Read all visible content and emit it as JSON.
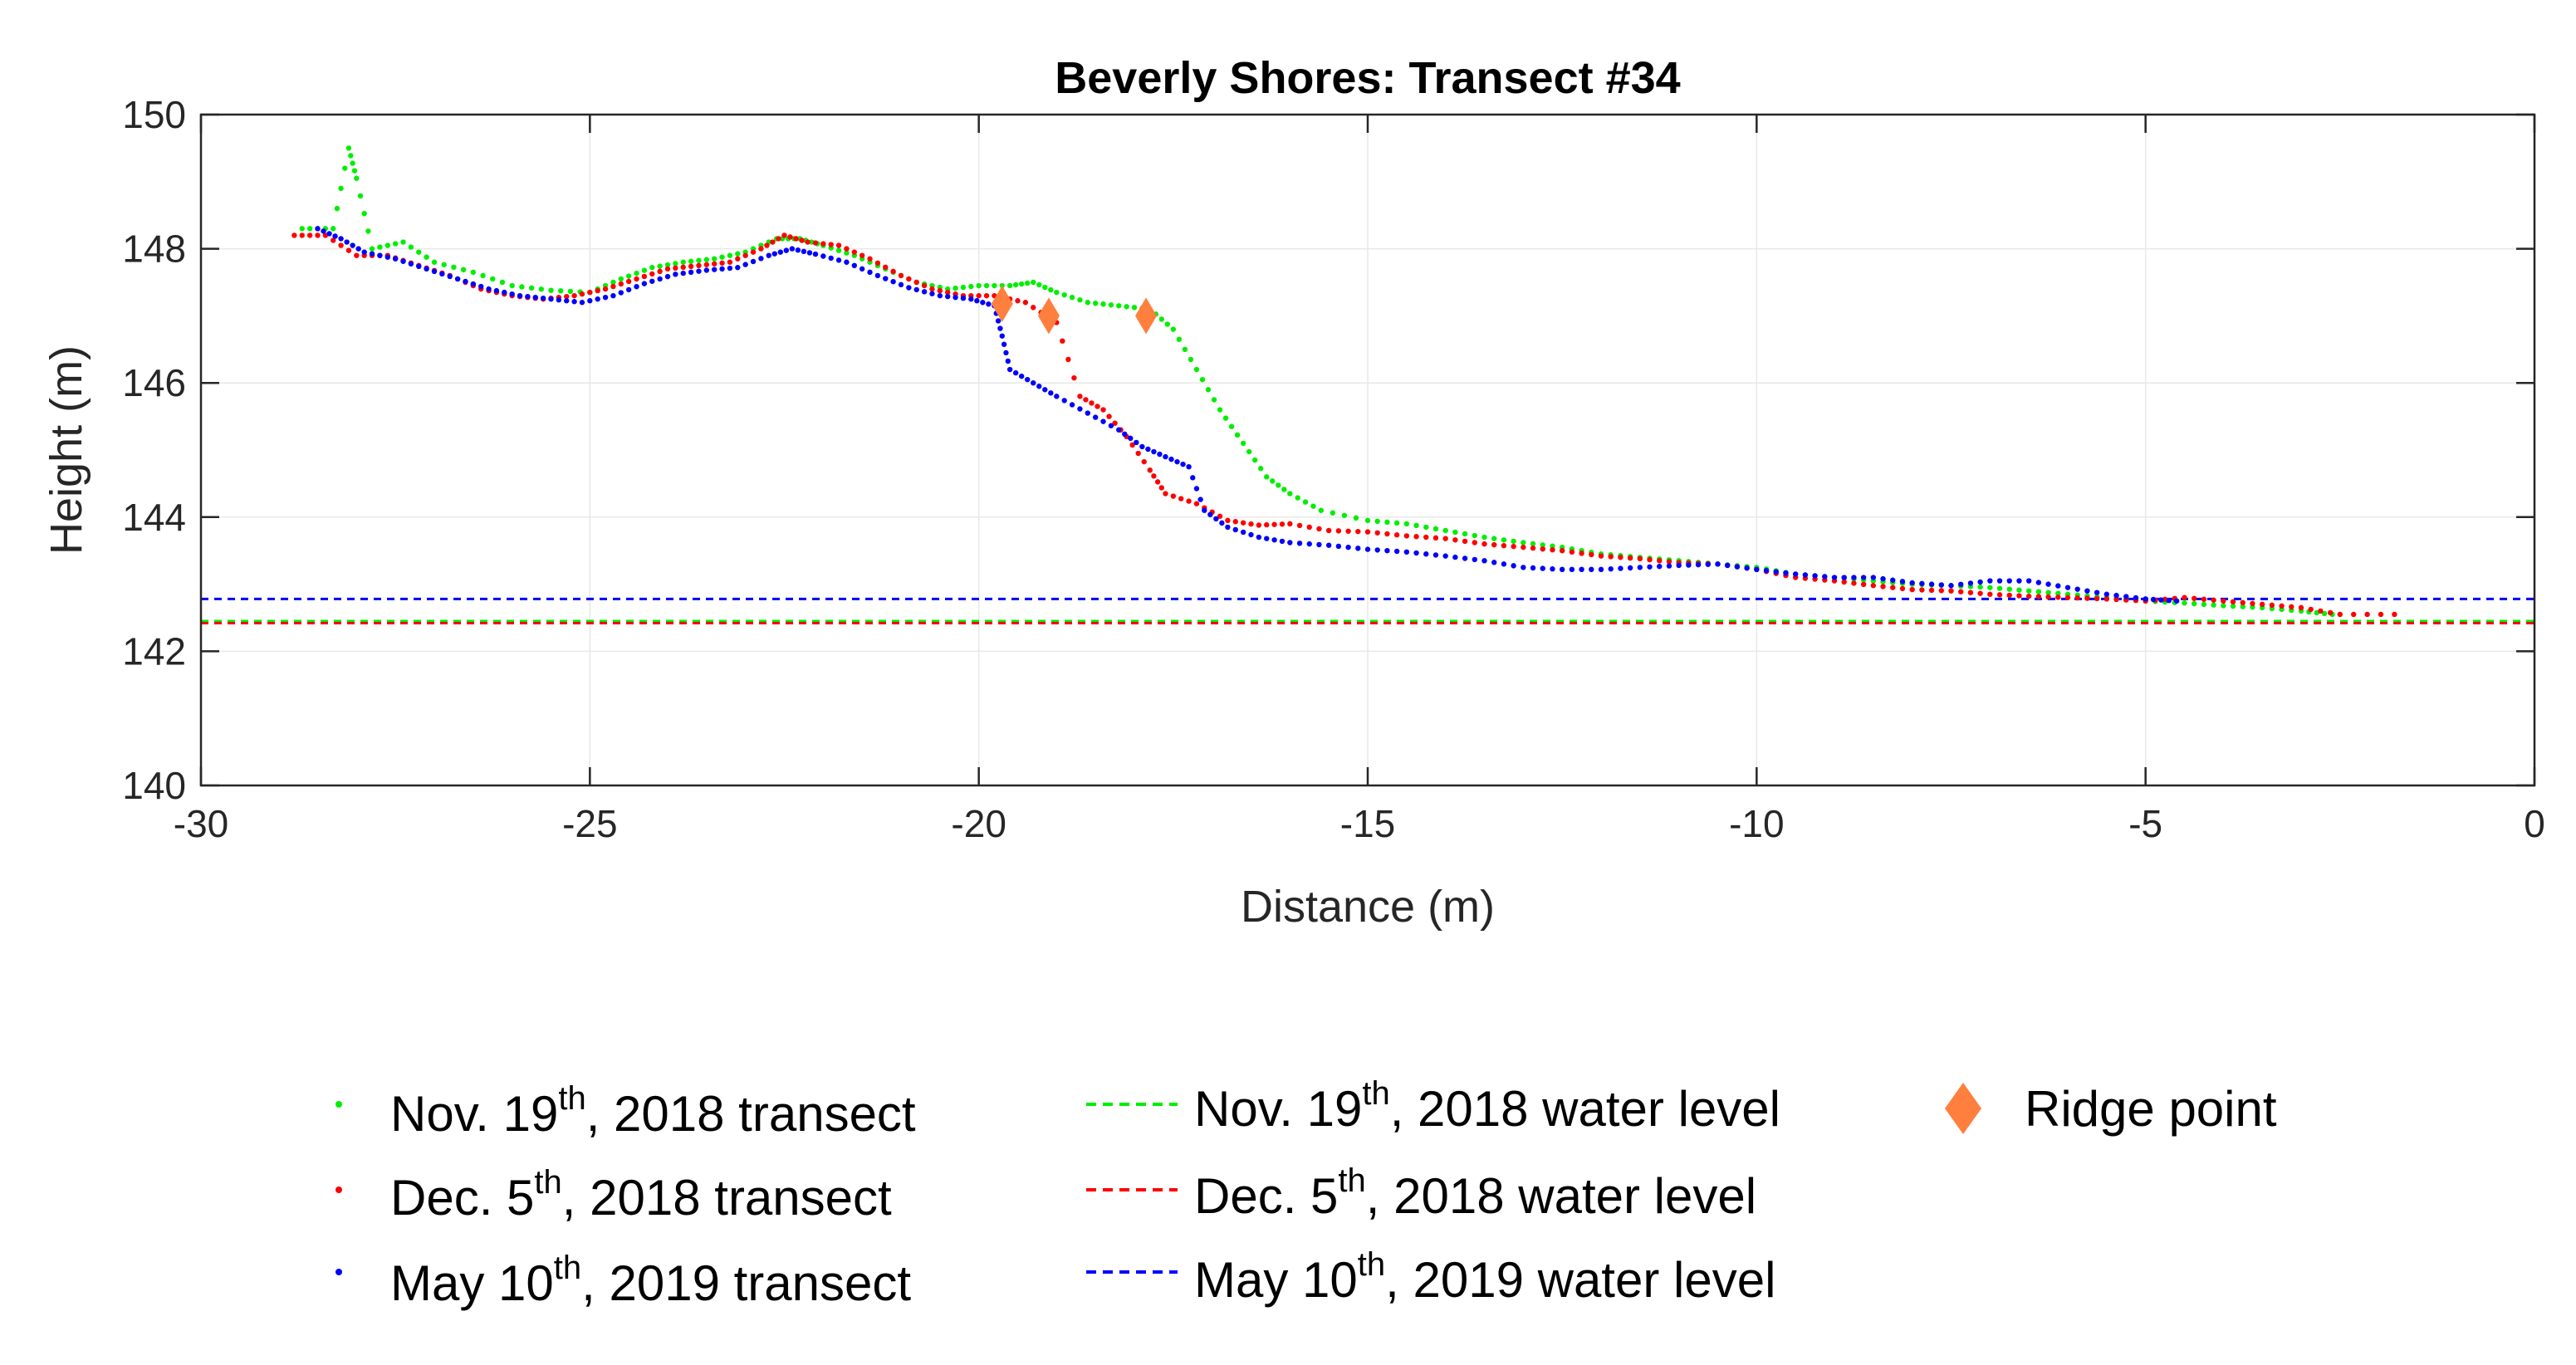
{
  "chart_data": {
    "type": "scatter",
    "title": "Beverly Shores: Transect #34",
    "xlabel": "Distance (m)",
    "ylabel": "Height (m)",
    "xlim": [
      -30,
      0
    ],
    "ylim": [
      140,
      150
    ],
    "xticks": [
      -30,
      -25,
      -20,
      -15,
      -10,
      -5,
      0
    ],
    "yticks": [
      140,
      142,
      144,
      146,
      148,
      150
    ],
    "grid": true,
    "legend_position": "bottom-outside",
    "series": [
      {
        "name": "Nov. 19th, 2018 transect",
        "date_label": "Nov. 19",
        "date_sup": "th",
        "date_suffix": ", 2018 transect",
        "kind": "scatter",
        "color": "#00ee00",
        "points": [
          [
            -28.7,
            148.3
          ],
          [
            -28.3,
            148.3
          ],
          [
            -28.1,
            149.5
          ],
          [
            -28.0,
            149.05
          ],
          [
            -27.8,
            148.0
          ],
          [
            -27.4,
            148.1
          ],
          [
            -27.0,
            147.8
          ],
          [
            -26.5,
            147.65
          ],
          [
            -26.0,
            147.45
          ],
          [
            -25.5,
            147.38
          ],
          [
            -25.0,
            147.35
          ],
          [
            -24.6,
            147.55
          ],
          [
            -24.2,
            147.72
          ],
          [
            -23.8,
            147.8
          ],
          [
            -23.4,
            147.85
          ],
          [
            -23.0,
            147.95
          ],
          [
            -22.6,
            148.15
          ],
          [
            -22.3,
            148.15
          ],
          [
            -22.0,
            148.05
          ],
          [
            -21.6,
            147.9
          ],
          [
            -21.2,
            147.7
          ],
          [
            -20.8,
            147.5
          ],
          [
            -20.4,
            147.4
          ],
          [
            -20.0,
            147.45
          ],
          [
            -19.6,
            147.45
          ],
          [
            -19.3,
            147.5
          ],
          [
            -19.0,
            147.35
          ],
          [
            -18.6,
            147.2
          ],
          [
            -18.2,
            147.15
          ],
          [
            -17.8,
            147.1
          ],
          [
            -17.5,
            146.8
          ],
          [
            -17.2,
            146.2
          ],
          [
            -16.9,
            145.6
          ],
          [
            -16.6,
            145.1
          ],
          [
            -16.3,
            144.6
          ],
          [
            -16.0,
            144.35
          ],
          [
            -15.6,
            144.1
          ],
          [
            -15.0,
            143.95
          ],
          [
            -14.5,
            143.9
          ],
          [
            -14.0,
            143.8
          ],
          [
            -13.5,
            143.7
          ],
          [
            -13.0,
            143.62
          ],
          [
            -12.5,
            143.55
          ],
          [
            -12.0,
            143.45
          ],
          [
            -11.5,
            143.4
          ],
          [
            -11.0,
            143.35
          ],
          [
            -10.5,
            143.3
          ],
          [
            -10.0,
            143.25
          ],
          [
            -9.5,
            143.15
          ],
          [
            -9.0,
            143.1
          ],
          [
            -8.5,
            143.05
          ],
          [
            -8.0,
            143.0
          ],
          [
            -7.5,
            142.98
          ],
          [
            -7.0,
            142.95
          ],
          [
            -6.5,
            142.9
          ],
          [
            -6.0,
            142.85
          ],
          [
            -5.5,
            142.8
          ],
          [
            -5.0,
            142.75
          ],
          [
            -4.5,
            142.72
          ],
          [
            -4.0,
            142.68
          ],
          [
            -3.5,
            142.65
          ],
          [
            -3.0,
            142.6
          ],
          [
            -2.6,
            142.55
          ]
        ]
      },
      {
        "name": "Dec. 5th, 2018 transect",
        "date_label": "Dec. 5",
        "date_sup": "th",
        "date_suffix": ", 2018 transect",
        "kind": "scatter",
        "color": "#ff0000",
        "points": [
          [
            -28.8,
            148.2
          ],
          [
            -28.4,
            148.2
          ],
          [
            -28.0,
            147.9
          ],
          [
            -27.6,
            147.9
          ],
          [
            -27.2,
            147.75
          ],
          [
            -26.8,
            147.6
          ],
          [
            -26.4,
            147.4
          ],
          [
            -26.0,
            147.3
          ],
          [
            -25.6,
            147.25
          ],
          [
            -25.2,
            147.3
          ],
          [
            -24.8,
            147.4
          ],
          [
            -24.4,
            147.55
          ],
          [
            -24.0,
            147.7
          ],
          [
            -23.6,
            147.75
          ],
          [
            -23.2,
            147.8
          ],
          [
            -22.8,
            148.0
          ],
          [
            -22.5,
            148.2
          ],
          [
            -22.2,
            148.1
          ],
          [
            -21.8,
            148.05
          ],
          [
            -21.4,
            147.85
          ],
          [
            -21.0,
            147.6
          ],
          [
            -20.6,
            147.4
          ],
          [
            -20.2,
            147.3
          ],
          [
            -19.8,
            147.3
          ],
          [
            -19.4,
            147.2
          ],
          [
            -19.0,
            146.9
          ],
          [
            -18.7,
            145.8
          ],
          [
            -18.4,
            145.6
          ],
          [
            -18.1,
            145.2
          ],
          [
            -17.8,
            144.7
          ],
          [
            -17.6,
            144.35
          ],
          [
            -17.2,
            144.2
          ],
          [
            -16.8,
            143.95
          ],
          [
            -16.4,
            143.88
          ],
          [
            -16.0,
            143.9
          ],
          [
            -15.5,
            143.8
          ],
          [
            -15.0,
            143.78
          ],
          [
            -14.5,
            143.72
          ],
          [
            -14.0,
            143.68
          ],
          [
            -13.5,
            143.6
          ],
          [
            -13.0,
            143.55
          ],
          [
            -12.5,
            143.5
          ],
          [
            -12.0,
            143.42
          ],
          [
            -11.5,
            143.38
          ],
          [
            -11.0,
            143.32
          ],
          [
            -10.5,
            143.3
          ],
          [
            -10.0,
            143.22
          ],
          [
            -9.5,
            143.1
          ],
          [
            -9.0,
            143.05
          ],
          [
            -8.5,
            142.98
          ],
          [
            -8.0,
            142.92
          ],
          [
            -7.5,
            142.9
          ],
          [
            -7.0,
            142.85
          ],
          [
            -6.5,
            142.82
          ],
          [
            -6.0,
            142.8
          ],
          [
            -5.5,
            142.78
          ],
          [
            -5.0,
            142.75
          ],
          [
            -4.5,
            142.8
          ],
          [
            -4.0,
            142.75
          ],
          [
            -3.5,
            142.7
          ],
          [
            -3.0,
            142.65
          ],
          [
            -2.5,
            142.55
          ],
          [
            -1.8,
            142.55
          ]
        ]
      },
      {
        "name": "May 10th, 2019 transect",
        "date_label": "May 10",
        "date_sup": "th",
        "date_suffix": ", 2019 transect",
        "kind": "scatter",
        "color": "#0000ff",
        "points": [
          [
            -28.5,
            148.3
          ],
          [
            -28.2,
            148.15
          ],
          [
            -27.9,
            147.95
          ],
          [
            -27.5,
            147.85
          ],
          [
            -27.1,
            147.7
          ],
          [
            -26.7,
            147.55
          ],
          [
            -26.3,
            147.4
          ],
          [
            -25.9,
            147.3
          ],
          [
            -25.5,
            147.25
          ],
          [
            -25.1,
            147.2
          ],
          [
            -24.7,
            147.3
          ],
          [
            -24.3,
            147.48
          ],
          [
            -23.9,
            147.62
          ],
          [
            -23.5,
            147.68
          ],
          [
            -23.1,
            147.72
          ],
          [
            -22.7,
            147.9
          ],
          [
            -22.4,
            148.0
          ],
          [
            -22.1,
            147.92
          ],
          [
            -21.7,
            147.8
          ],
          [
            -21.3,
            147.6
          ],
          [
            -20.9,
            147.42
          ],
          [
            -20.5,
            147.3
          ],
          [
            -20.1,
            147.25
          ],
          [
            -19.8,
            147.15
          ],
          [
            -19.7,
            146.7
          ],
          [
            -19.6,
            146.2
          ],
          [
            -19.3,
            146.0
          ],
          [
            -19.0,
            145.8
          ],
          [
            -18.6,
            145.55
          ],
          [
            -18.2,
            145.3
          ],
          [
            -17.9,
            145.05
          ],
          [
            -17.6,
            144.9
          ],
          [
            -17.3,
            144.75
          ],
          [
            -17.1,
            144.1
          ],
          [
            -16.8,
            143.85
          ],
          [
            -16.4,
            143.7
          ],
          [
            -16.0,
            143.62
          ],
          [
            -15.5,
            143.58
          ],
          [
            -15.0,
            143.52
          ],
          [
            -14.5,
            143.48
          ],
          [
            -14.0,
            143.42
          ],
          [
            -13.5,
            143.35
          ],
          [
            -13.0,
            143.25
          ],
          [
            -12.5,
            143.22
          ],
          [
            -12.0,
            143.22
          ],
          [
            -11.5,
            143.25
          ],
          [
            -11.0,
            143.28
          ],
          [
            -10.5,
            143.3
          ],
          [
            -10.0,
            143.22
          ],
          [
            -9.5,
            143.15
          ],
          [
            -9.0,
            143.1
          ],
          [
            -8.5,
            143.1
          ],
          [
            -8.0,
            143.02
          ],
          [
            -7.5,
            142.98
          ],
          [
            -7.0,
            143.05
          ],
          [
            -6.5,
            143.05
          ],
          [
            -6.0,
            142.95
          ],
          [
            -5.5,
            142.85
          ],
          [
            -5.0,
            142.78
          ],
          [
            -4.6,
            142.75
          ]
        ]
      },
      {
        "name": "Nov. 19th, 2018 water level",
        "date_label": "Nov. 19",
        "date_sup": "th",
        "date_suffix": ", 2018 water level",
        "kind": "hline",
        "color": "#00ee00",
        "value": 142.45
      },
      {
        "name": "Dec. 5th, 2018 water level",
        "date_label": "Dec. 5",
        "date_sup": "th",
        "date_suffix": ", 2018 water level",
        "kind": "hline",
        "color": "#ff0000",
        "value": 142.42
      },
      {
        "name": "May 10th, 2019 water level",
        "date_label": "May 10",
        "date_sup": "th",
        "date_suffix": ", 2019 water level",
        "kind": "hline",
        "color": "#0000ff",
        "value": 142.78
      },
      {
        "name": "Ridge point",
        "label": "Ridge point",
        "kind": "marker",
        "color": "#ff7f3f",
        "points": [
          [
            -19.7,
            147.18
          ],
          [
            -19.1,
            147.0
          ],
          [
            -17.85,
            147.0
          ]
        ]
      }
    ]
  }
}
